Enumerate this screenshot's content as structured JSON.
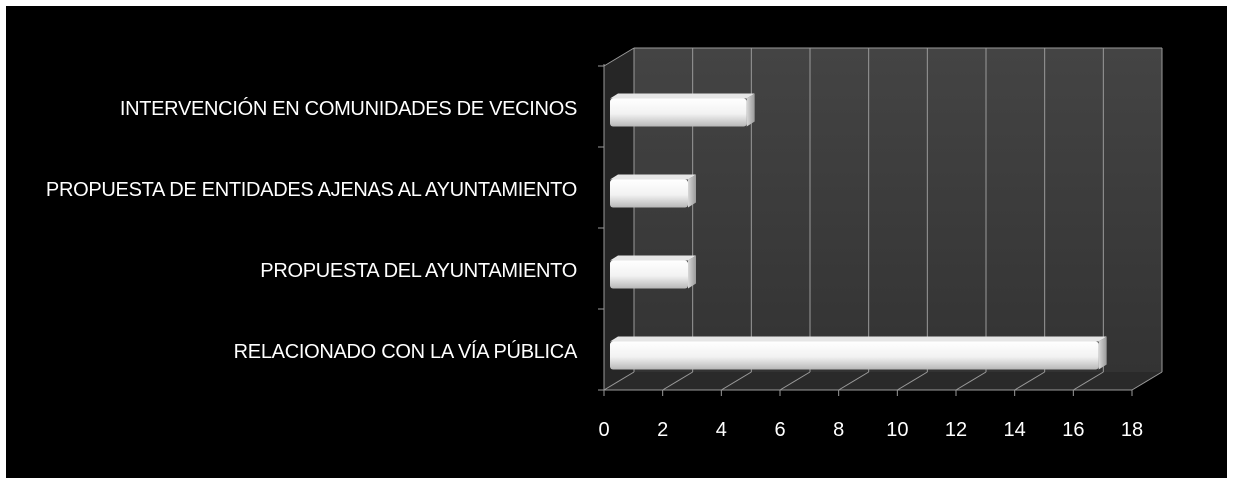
{
  "chart_data": {
    "type": "bar",
    "orientation": "horizontal",
    "style": "3d",
    "title": "",
    "xlabel": "",
    "ylabel": "",
    "categories": [
      "INTERVENCIÓN EN COMUNIDADES DE VECINOS",
      "PROPUESTA DE ENTIDADES AJENAS AL AYUNTAMIENTO",
      "PROPUESTA DEL AYUNTAMIENTO",
      "RELACIONADO CON LA VÍA PÚBLICA"
    ],
    "values": [
      5,
      3,
      3,
      17
    ],
    "xlim": [
      0,
      18
    ],
    "xticks": [
      "0",
      "2",
      "4",
      "6",
      "8",
      "10",
      "12",
      "14",
      "16",
      "18"
    ],
    "grid": true,
    "legend": "none",
    "colors": {
      "background": "#000000",
      "wall": "#3a3a3a",
      "floor": "#2a2a2a",
      "gridline": "#9a9a9a",
      "bar": "#ffffff",
      "text": "#ffffff"
    }
  }
}
